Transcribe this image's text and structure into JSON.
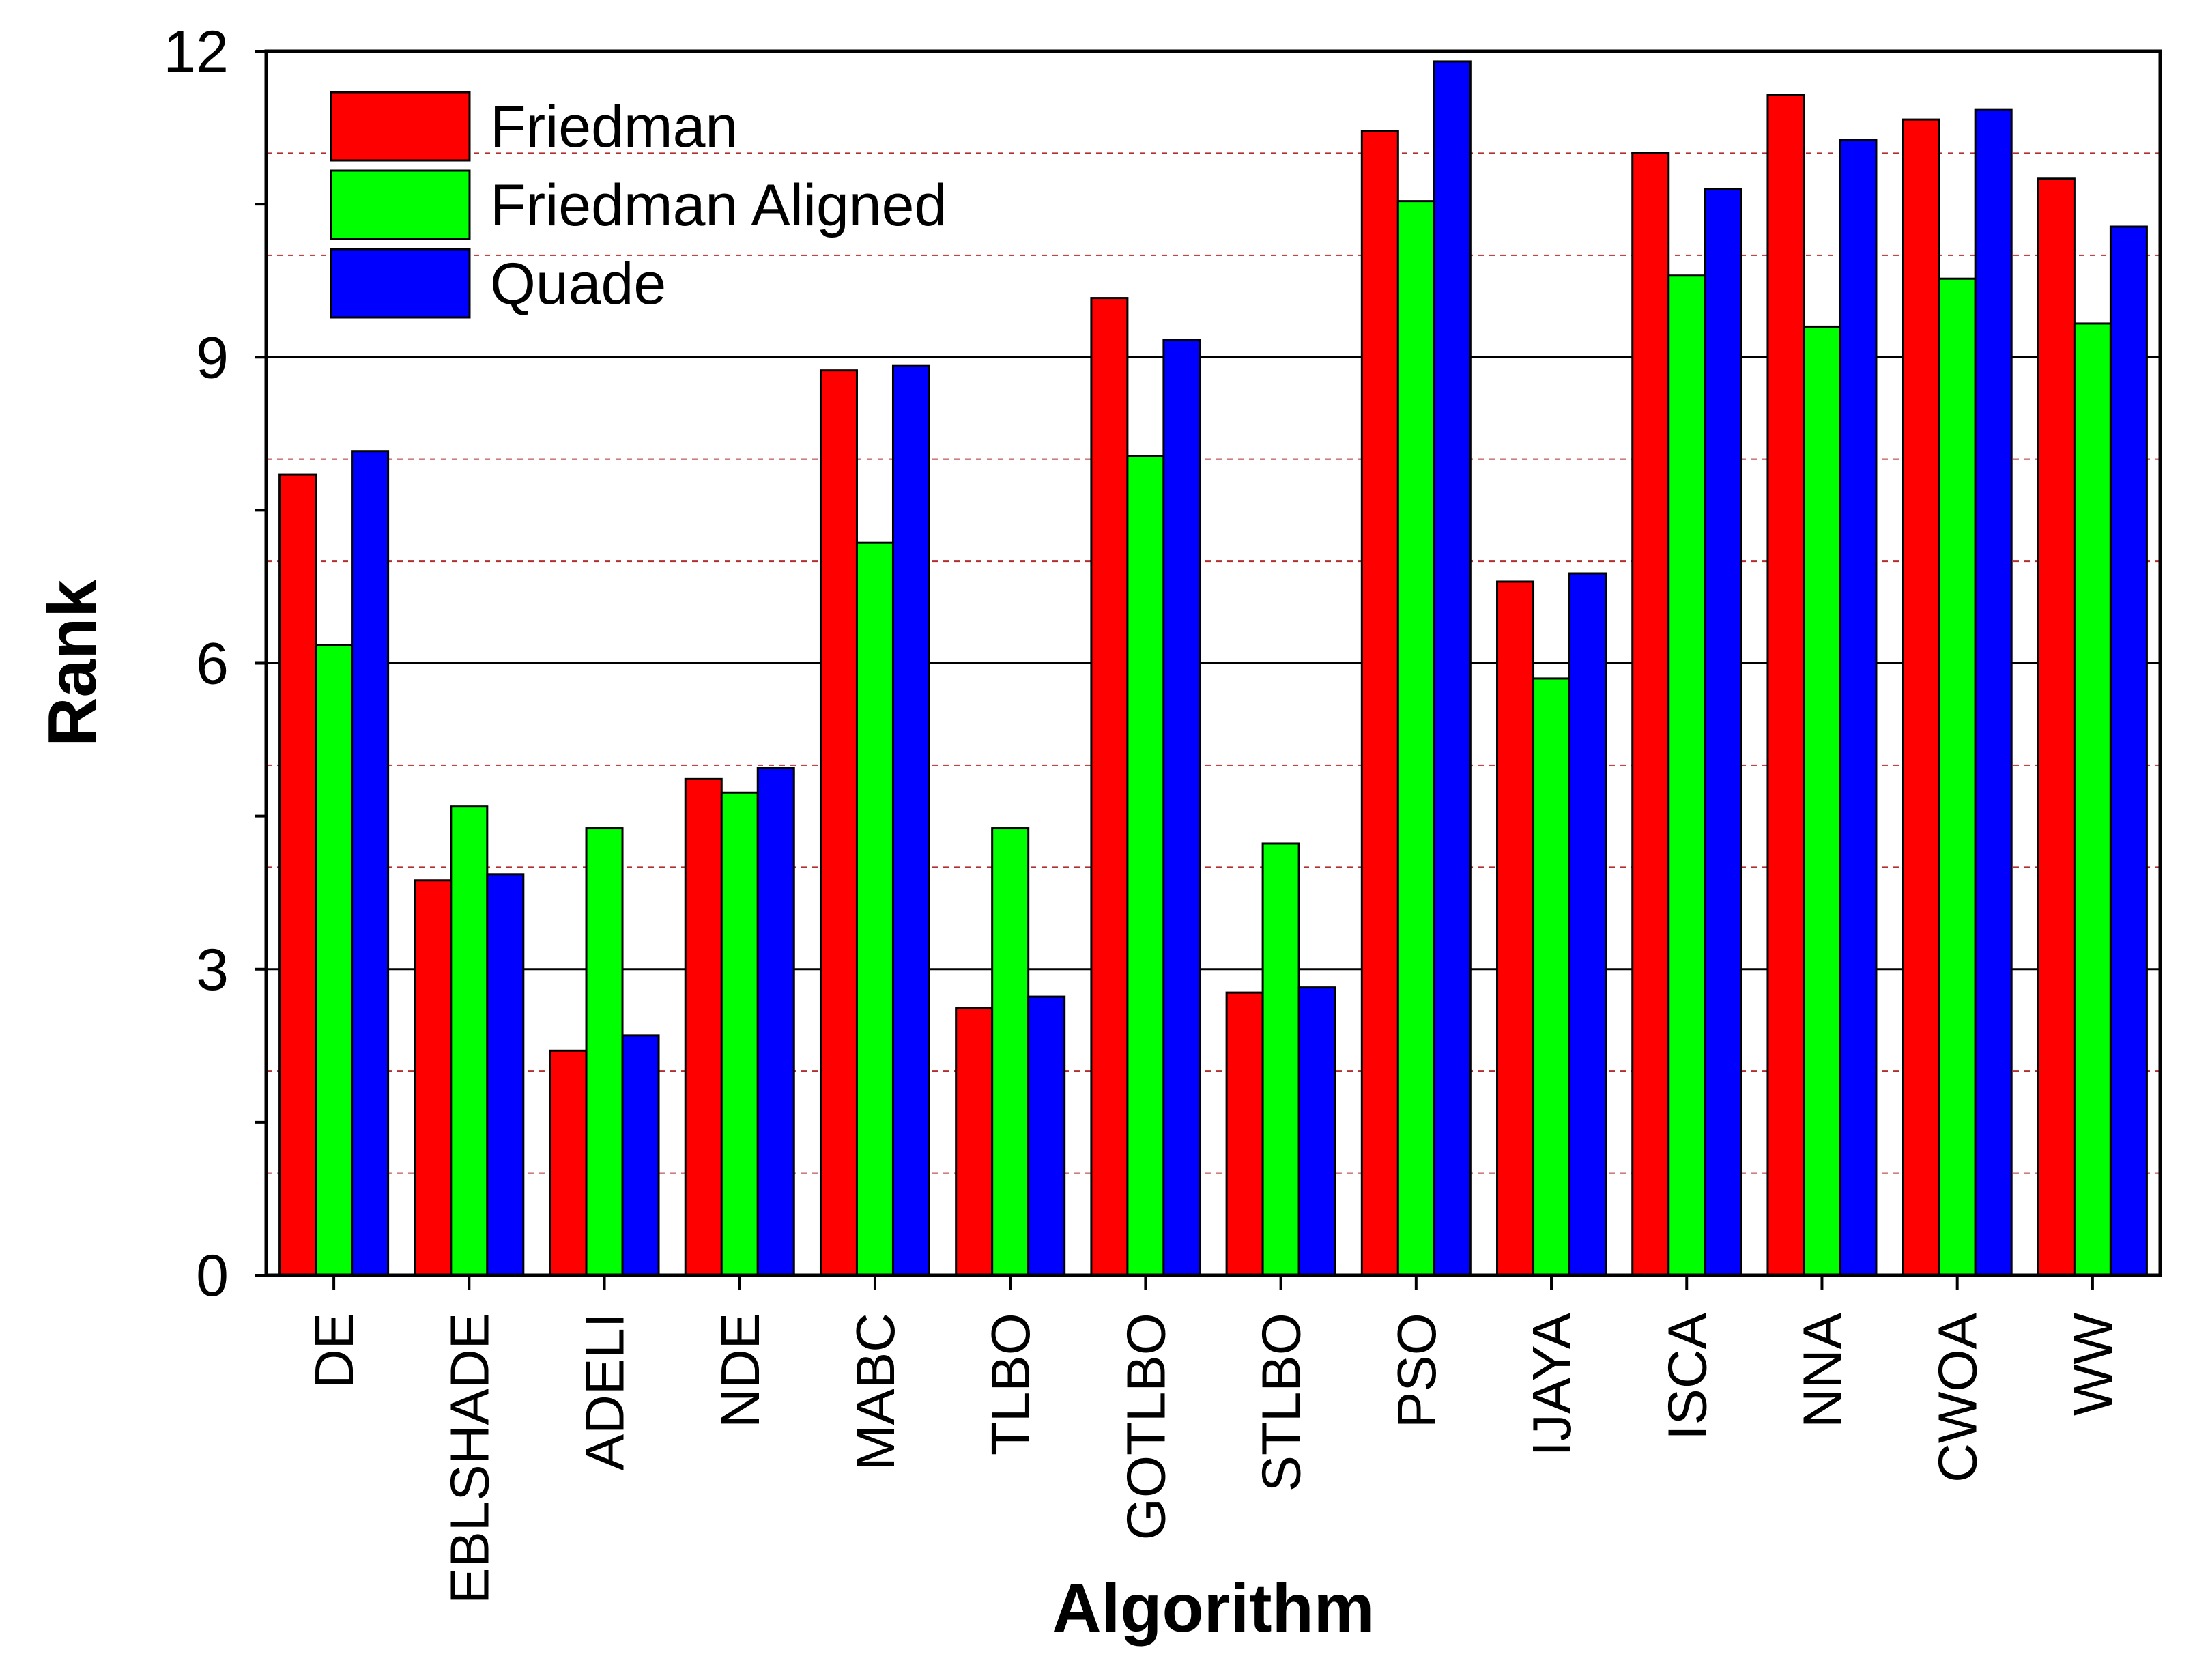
{
  "chart_data": {
    "type": "bar",
    "title": "",
    "xlabel": "Algorithm",
    "ylabel": "Rank",
    "ylim": [
      0,
      12
    ],
    "y_ticks": [
      0,
      3,
      6,
      9,
      12
    ],
    "y_tick_labels": [
      "0",
      "3",
      "6",
      "9",
      "12"
    ],
    "major_grid": [
      3,
      6,
      9
    ],
    "minor_grid": [
      1,
      2,
      4,
      5,
      7,
      8,
      10,
      11
    ],
    "legend_position": "top-left",
    "categories": [
      "DE",
      "EBLSHADE",
      "ADELI",
      "NDE",
      "MABC",
      "TLBO",
      "GOTLBO",
      "STLBO",
      "PSO",
      "IJAYA",
      "ISCA",
      "NNA",
      "CWOA",
      "WW"
    ],
    "series": [
      {
        "name": "Friedman",
        "color": "#ff0000",
        "values": [
          7.85,
          3.87,
          2.2,
          4.87,
          8.87,
          2.62,
          9.58,
          2.77,
          11.22,
          6.8,
          11.0,
          11.57,
          11.33,
          10.75
        ]
      },
      {
        "name": "Friedman Aligned",
        "color": "#00ff00",
        "values": [
          6.18,
          4.6,
          4.38,
          4.73,
          7.18,
          4.38,
          8.03,
          4.23,
          10.53,
          5.85,
          9.8,
          9.3,
          9.77,
          9.33
        ]
      },
      {
        "name": "Quade",
        "color": "#0000ff",
        "values": [
          8.08,
          3.93,
          2.35,
          4.97,
          8.92,
          2.73,
          9.17,
          2.82,
          11.9,
          6.88,
          10.65,
          11.13,
          11.43,
          10.28
        ]
      }
    ]
  }
}
